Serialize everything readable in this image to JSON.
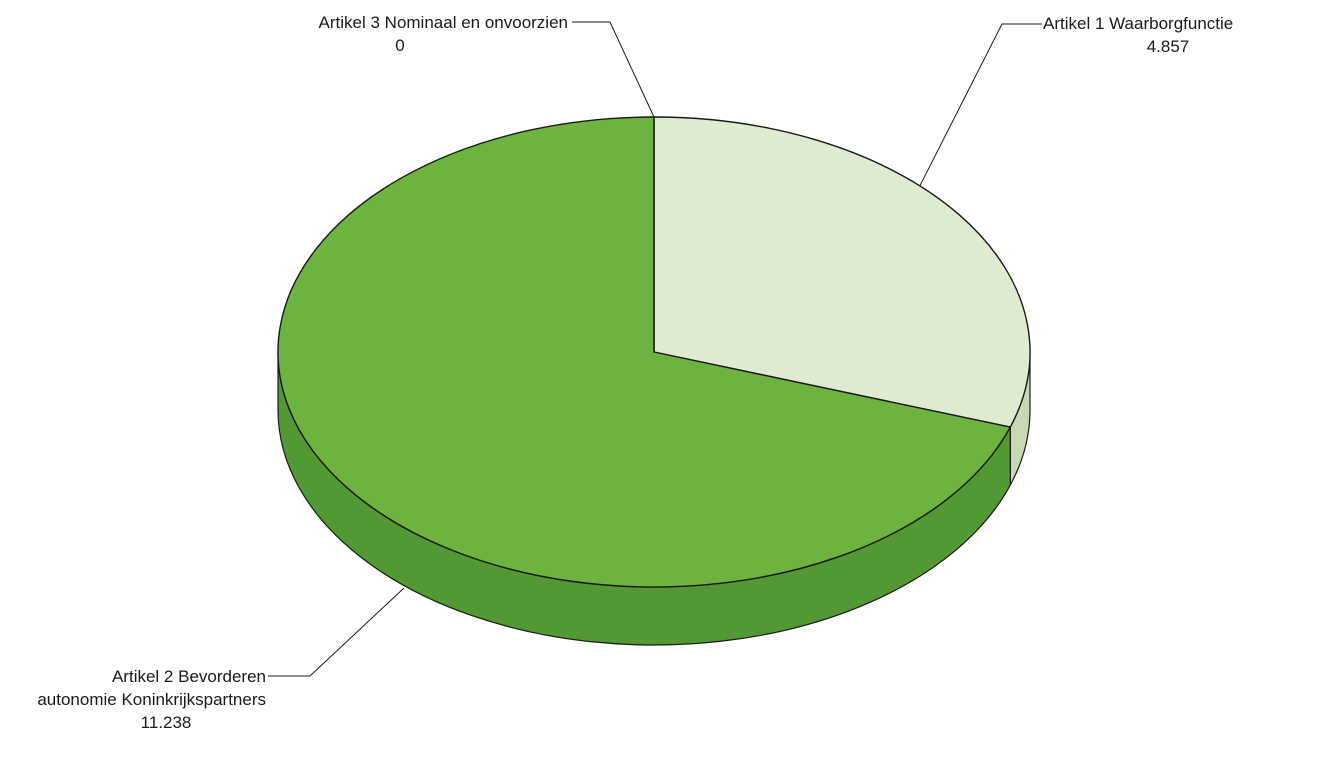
{
  "chart_data": {
    "type": "pie",
    "title": "",
    "style": "3d",
    "colors": {
      "Artikel 1 Waarborgfunctie": "#dfebd1",
      "Artikel 2 Bevorderen autonomie Koninkrijkspartners": "#6db33f",
      "Artikel 3 Nominaal en onvoorzien": "#4f9334"
    },
    "slices": [
      {
        "label": "Artikel 1 Waarborgfunctie",
        "label_lines": [
          "Artikel 1 Waarborgfunctie"
        ],
        "value": 4857,
        "value_label": "4.857"
      },
      {
        "label": "Artikel 2 Bevorderen autonomie Koninkrijkspartners",
        "label_lines": [
          "Artikel 2 Bevorderen",
          "autonomie Koninkrijkspartners"
        ],
        "value": 11238,
        "value_label": "11.238"
      },
      {
        "label": "Artikel 3 Nominaal en onvoorzien",
        "label_lines": [
          "Artikel 3 Nominaal en onvoorzien"
        ],
        "value": 0,
        "value_label": "0"
      }
    ]
  }
}
